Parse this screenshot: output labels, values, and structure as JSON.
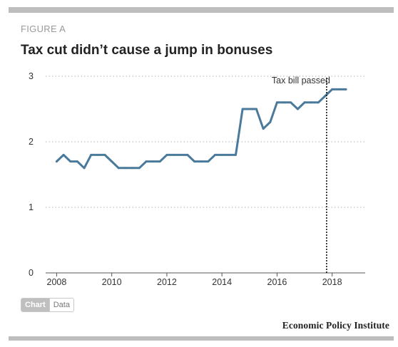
{
  "figure_label": "FIGURE A",
  "title": "Tax cut didn’t cause a jump in bonuses",
  "toggle": {
    "chart_label": "Chart",
    "data_label": "Data",
    "active": "Chart"
  },
  "source": "Economic Policy Institute",
  "colors": {
    "line": "#4a7a9b",
    "grid": "#cccccc",
    "rule": "#bdbdbd",
    "marker": "#000000"
  },
  "chart_data": {
    "type": "line",
    "title": "Tax cut didn’t cause a jump in bonuses",
    "xlabel": "",
    "ylabel": "",
    "xlim": [
      2007.6,
      2019.2
    ],
    "ylim": [
      0,
      3
    ],
    "x_ticks": [
      2008,
      2010,
      2012,
      2014,
      2016,
      2018
    ],
    "y_ticks": [
      0,
      1,
      2,
      3
    ],
    "grid": true,
    "series": [
      {
        "x": [
          2008.0,
          2008.25,
          2008.5,
          2008.75,
          2009.0,
          2009.25,
          2009.5,
          2009.75,
          2010.0,
          2010.25,
          2010.5,
          2010.75,
          2011.0,
          2011.25,
          2011.5,
          2011.75,
          2012.0,
          2012.25,
          2012.5,
          2012.75,
          2013.0,
          2013.25,
          2013.5,
          2013.75,
          2014.0,
          2014.25,
          2014.5,
          2014.75,
          2015.0,
          2015.25,
          2015.5,
          2015.75,
          2016.0,
          2016.25,
          2016.5,
          2016.75,
          2017.0,
          2017.25,
          2017.5,
          2017.75,
          2018.0,
          2018.25,
          2018.5
        ],
        "values": [
          1.7,
          1.8,
          1.7,
          1.7,
          1.6,
          1.8,
          1.8,
          1.8,
          1.7,
          1.6,
          1.6,
          1.6,
          1.6,
          1.7,
          1.7,
          1.7,
          1.8,
          1.8,
          1.8,
          1.8,
          1.7,
          1.7,
          1.7,
          1.8,
          1.8,
          1.8,
          1.8,
          2.5,
          2.5,
          2.5,
          2.2,
          2.3,
          2.6,
          2.6,
          2.6,
          2.5,
          2.6,
          2.6,
          2.6,
          2.7,
          2.8,
          2.8,
          2.8
        ]
      }
    ],
    "annotations": [
      {
        "x": 2017.8,
        "text": "Tax bill passed"
      }
    ]
  }
}
